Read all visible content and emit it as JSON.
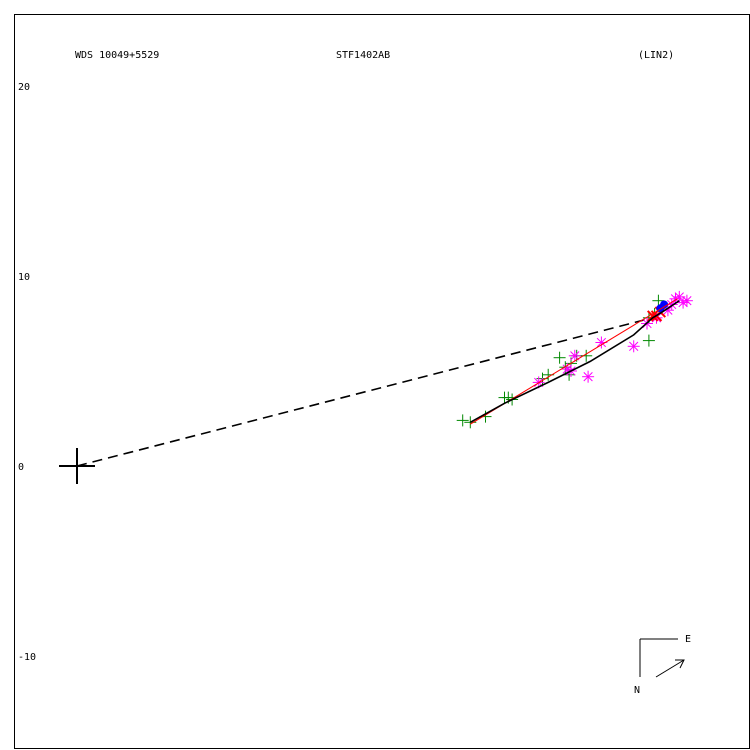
{
  "chart_data": {
    "type": "scatter",
    "header": {
      "left": "WDS 10049+5529",
      "center": "STF1402AB",
      "right": "(LIN2)"
    },
    "y_ticks": [
      "20",
      "10",
      "0",
      "-10"
    ],
    "y_tick_values": [
      20,
      10,
      0,
      -10
    ],
    "compass": {
      "east": "E",
      "north": "N"
    },
    "colors": {
      "frame": "#000000",
      "green": "#008800",
      "magenta": "#ff00ff",
      "red": "#ff0000",
      "blue": "#0000ff",
      "orbit": "#000000",
      "residual": "#ff0000"
    },
    "primary": [
      0,
      0
    ],
    "node_line": {
      "from": [
        0,
        0
      ],
      "to": [
        30.3,
        7.8
      ]
    },
    "orbit": [
      [
        20.7,
        2.3
      ],
      [
        22.5,
        3.3
      ],
      [
        24.8,
        4.4
      ],
      [
        27.0,
        5.5
      ],
      [
        29.3,
        6.9
      ],
      [
        30.3,
        7.8
      ],
      [
        30.8,
        8.1
      ],
      [
        31.7,
        8.7
      ]
    ],
    "residual": [
      [
        20.7,
        2.2
      ],
      [
        31.6,
        8.8
      ]
    ],
    "obs_green": [
      [
        20.3,
        2.4
      ],
      [
        20.7,
        2.3
      ],
      [
        21.5,
        2.6
      ],
      [
        22.5,
        3.6
      ],
      [
        22.7,
        3.6
      ],
      [
        22.9,
        3.5
      ],
      [
        24.5,
        4.6
      ],
      [
        24.8,
        4.8
      ],
      [
        25.4,
        5.7
      ],
      [
        25.7,
        5.2
      ],
      [
        25.9,
        4.8
      ],
      [
        26.0,
        5.4
      ],
      [
        26.3,
        5.8
      ],
      [
        26.8,
        5.8
      ],
      [
        30.1,
        7.8
      ],
      [
        30.4,
        8.0
      ],
      [
        30.6,
        8.7
      ],
      [
        30.1,
        6.6
      ]
    ],
    "obs_magenta": [
      [
        24.3,
        4.4
      ],
      [
        25.8,
        5.1
      ],
      [
        26.0,
        5.0
      ],
      [
        26.2,
        5.8
      ],
      [
        26.9,
        4.7
      ],
      [
        27.6,
        6.5
      ],
      [
        29.3,
        6.3
      ],
      [
        30.0,
        7.5
      ],
      [
        30.5,
        7.8
      ],
      [
        31.1,
        8.2
      ],
      [
        31.3,
        8.5
      ],
      [
        31.5,
        8.8
      ],
      [
        31.7,
        8.9
      ],
      [
        31.9,
        8.6
      ],
      [
        32.1,
        8.7
      ]
    ],
    "obs_red": [
      [
        30.3,
        7.9
      ],
      [
        30.5,
        7.9
      ],
      [
        30.7,
        8.1
      ]
    ],
    "obs_blue": [
      [
        30.7,
        8.3
      ],
      [
        30.9,
        8.5
      ]
    ]
  }
}
